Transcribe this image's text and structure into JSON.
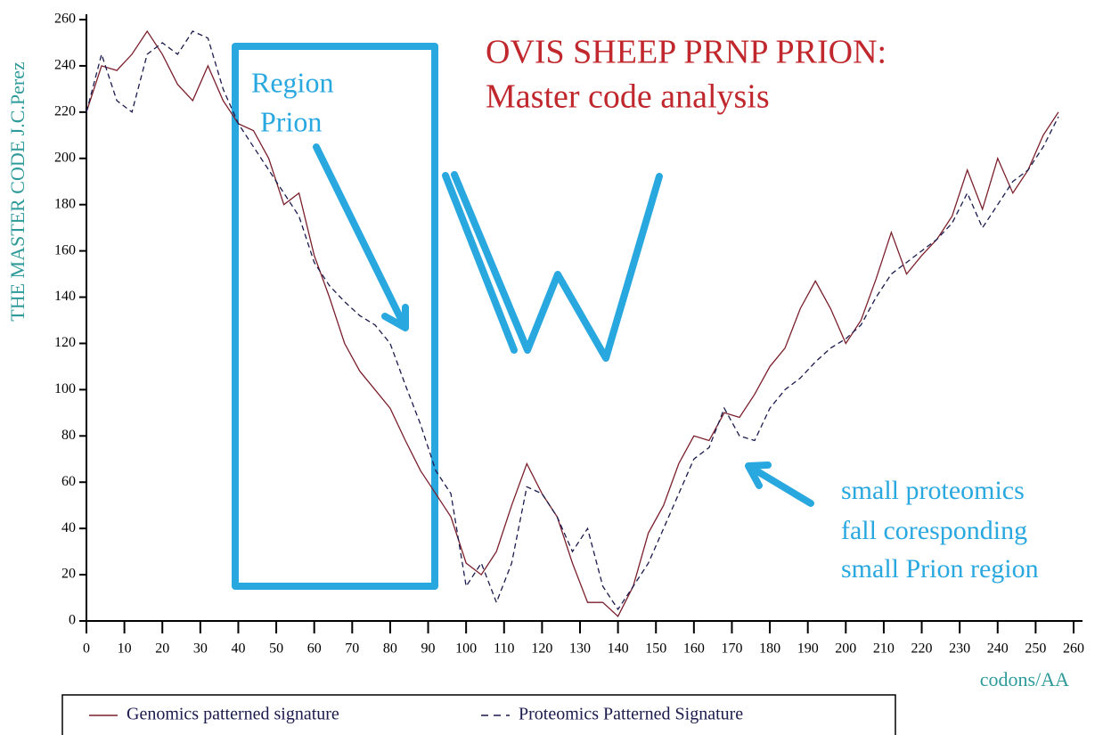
{
  "chart_data": {
    "type": "line",
    "title": "OVIS SHEEP PRNP PRION:",
    "subtitle": "Master code analysis",
    "y_label": "THE MASTER CODE J.C.Perez",
    "x_label": "codons/AA",
    "annotations": [
      "Region",
      "Prion",
      "small proteomics",
      "fall coresponding",
      "small Prion region"
    ],
    "x": [
      0,
      4,
      8,
      12,
      16,
      20,
      24,
      28,
      32,
      36,
      40,
      44,
      48,
      52,
      56,
      60,
      64,
      68,
      72,
      76,
      80,
      84,
      88,
      92,
      96,
      100,
      104,
      108,
      112,
      116,
      120,
      124,
      128,
      132,
      136,
      140,
      144,
      148,
      152,
      156,
      160,
      164,
      168,
      172,
      176,
      180,
      184,
      188,
      192,
      196,
      200,
      204,
      208,
      212,
      216,
      220,
      224,
      228,
      232,
      236,
      240,
      244,
      248,
      252,
      256
    ],
    "series": [
      {
        "name": "Genomics patterned signature",
        "color": "#7a1f2b",
        "dash": false,
        "values": [
          220,
          240,
          238,
          245,
          255,
          245,
          232,
          225,
          240,
          225,
          215,
          212,
          200,
          180,
          185,
          158,
          140,
          120,
          108,
          100,
          92,
          78,
          65,
          55,
          45,
          25,
          20,
          30,
          50,
          68,
          55,
          45,
          25,
          8,
          8,
          2,
          15,
          38,
          50,
          68,
          80,
          78,
          90,
          88,
          98,
          110,
          118,
          135,
          147,
          135,
          120,
          130,
          148,
          168,
          150,
          158,
          165,
          175,
          195,
          178,
          200,
          185,
          195,
          210,
          220
        ]
      },
      {
        "name": "Proteomics Patterned Signature",
        "color": "#1a1a4e",
        "dash": true,
        "values": [
          220,
          245,
          225,
          220,
          245,
          250,
          245,
          255,
          252,
          230,
          215,
          205,
          195,
          185,
          175,
          155,
          145,
          138,
          132,
          128,
          120,
          102,
          85,
          65,
          55,
          15,
          25,
          8,
          25,
          58,
          55,
          45,
          30,
          40,
          15,
          5,
          15,
          25,
          40,
          55,
          70,
          75,
          92,
          80,
          78,
          92,
          100,
          105,
          112,
          118,
          122,
          128,
          140,
          150,
          155,
          160,
          165,
          172,
          185,
          170,
          180,
          190,
          195,
          205,
          218
        ]
      }
    ],
    "xlim": [
      0,
      260
    ],
    "ylim": [
      0,
      260
    ],
    "xticks": [
      0,
      10,
      20,
      30,
      40,
      50,
      60,
      70,
      80,
      90,
      100,
      110,
      120,
      130,
      140,
      150,
      160,
      170,
      180,
      190,
      200,
      210,
      220,
      230,
      240,
      250,
      260
    ],
    "yticks": [
      0,
      20,
      40,
      60,
      80,
      100,
      120,
      140,
      160,
      180,
      200,
      220,
      240,
      260
    ]
  }
}
